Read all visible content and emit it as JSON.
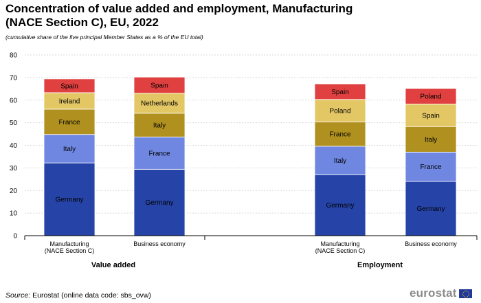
{
  "header": {
    "title": "Concentration of value added and employment, Manufacturing (NACE Section C), EU, 2022",
    "subtitle": "(cumulative share of the five principal Member States as a % of the EU total)"
  },
  "footer": {
    "source_label": "Source:",
    "source_text": "Eurostat (online data code: sbs_ovw)",
    "logo_text": "eurostat"
  },
  "chart_data": {
    "type": "bar",
    "stacked": true,
    "ylim": [
      0,
      80
    ],
    "yticks": [
      0,
      10,
      20,
      30,
      40,
      50,
      60,
      70,
      80
    ],
    "grid": true,
    "groups": [
      {
        "label": "Value added",
        "bars": [
          {
            "label": [
              "Manufacturing",
              "(NACE Section C)"
            ],
            "segments": [
              {
                "country": "Germany",
                "value": 32.2
              },
              {
                "country": "Italy",
                "value": 12.6
              },
              {
                "country": "France",
                "value": 11.2
              },
              {
                "country": "Ireland",
                "value": 7.3
              },
              {
                "country": "Spain",
                "value": 6.1
              }
            ]
          },
          {
            "label": [
              "Business economy"
            ],
            "segments": [
              {
                "country": "Germany",
                "value": 29.4
              },
              {
                "country": "France",
                "value": 14.3
              },
              {
                "country": "Italy",
                "value": 10.5
              },
              {
                "country": "Netherlands",
                "value": 8.9
              },
              {
                "country": "Spain",
                "value": 7.1
              }
            ]
          }
        ]
      },
      {
        "label": "Employment",
        "bars": [
          {
            "label": [
              "Manufacturing",
              "(NACE Section C)"
            ],
            "segments": [
              {
                "country": "Germany",
                "value": 27.0
              },
              {
                "country": "Italy",
                "value": 12.6
              },
              {
                "country": "France",
                "value": 10.8
              },
              {
                "country": "Poland",
                "value": 9.9
              },
              {
                "country": "Spain",
                "value": 6.9
              }
            ]
          },
          {
            "label": [
              "Business economy"
            ],
            "segments": [
              {
                "country": "Germany",
                "value": 24.0
              },
              {
                "country": "France",
                "value": 13.0
              },
              {
                "country": "Italy",
                "value": 11.3
              },
              {
                "country": "Spain",
                "value": 10.0
              },
              {
                "country": "Poland",
                "value": 6.9
              }
            ]
          }
        ]
      }
    ],
    "segment_colors": [
      "#2644a7",
      "#7087e1",
      "#b09120",
      "#e3c765",
      "#e04040"
    ]
  }
}
